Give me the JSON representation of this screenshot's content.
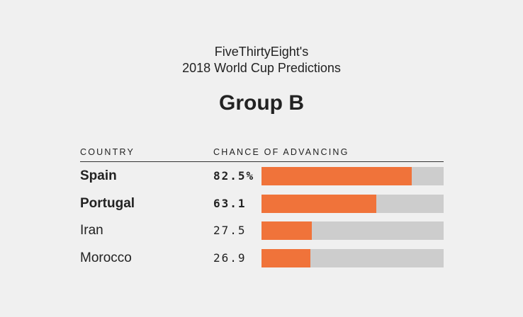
{
  "header": {
    "subtitle_line1": "FiveThirtyEight's",
    "subtitle_line2": "2018 World Cup Predictions",
    "group_title": "Group B"
  },
  "columns": {
    "country": "COUNTRY",
    "chance": "CHANCE OF ADVANCING"
  },
  "colors": {
    "bar_fill": "#f0733a",
    "bar_track": "#cdcdcd",
    "background": "#f0f0f0"
  },
  "chart_data": {
    "type": "bar",
    "orientation": "horizontal",
    "title": "Group B",
    "categories": [
      "Spain",
      "Portugal",
      "Iran",
      "Morocco"
    ],
    "values": [
      82.5,
      63.1,
      27.5,
      26.9
    ],
    "value_labels": [
      "82.5%",
      "63.1",
      "27.5",
      "26.9"
    ],
    "bold_rows": [
      true,
      true,
      false,
      false
    ],
    "xlim": [
      0,
      100
    ],
    "grid": false,
    "legend": "none"
  }
}
